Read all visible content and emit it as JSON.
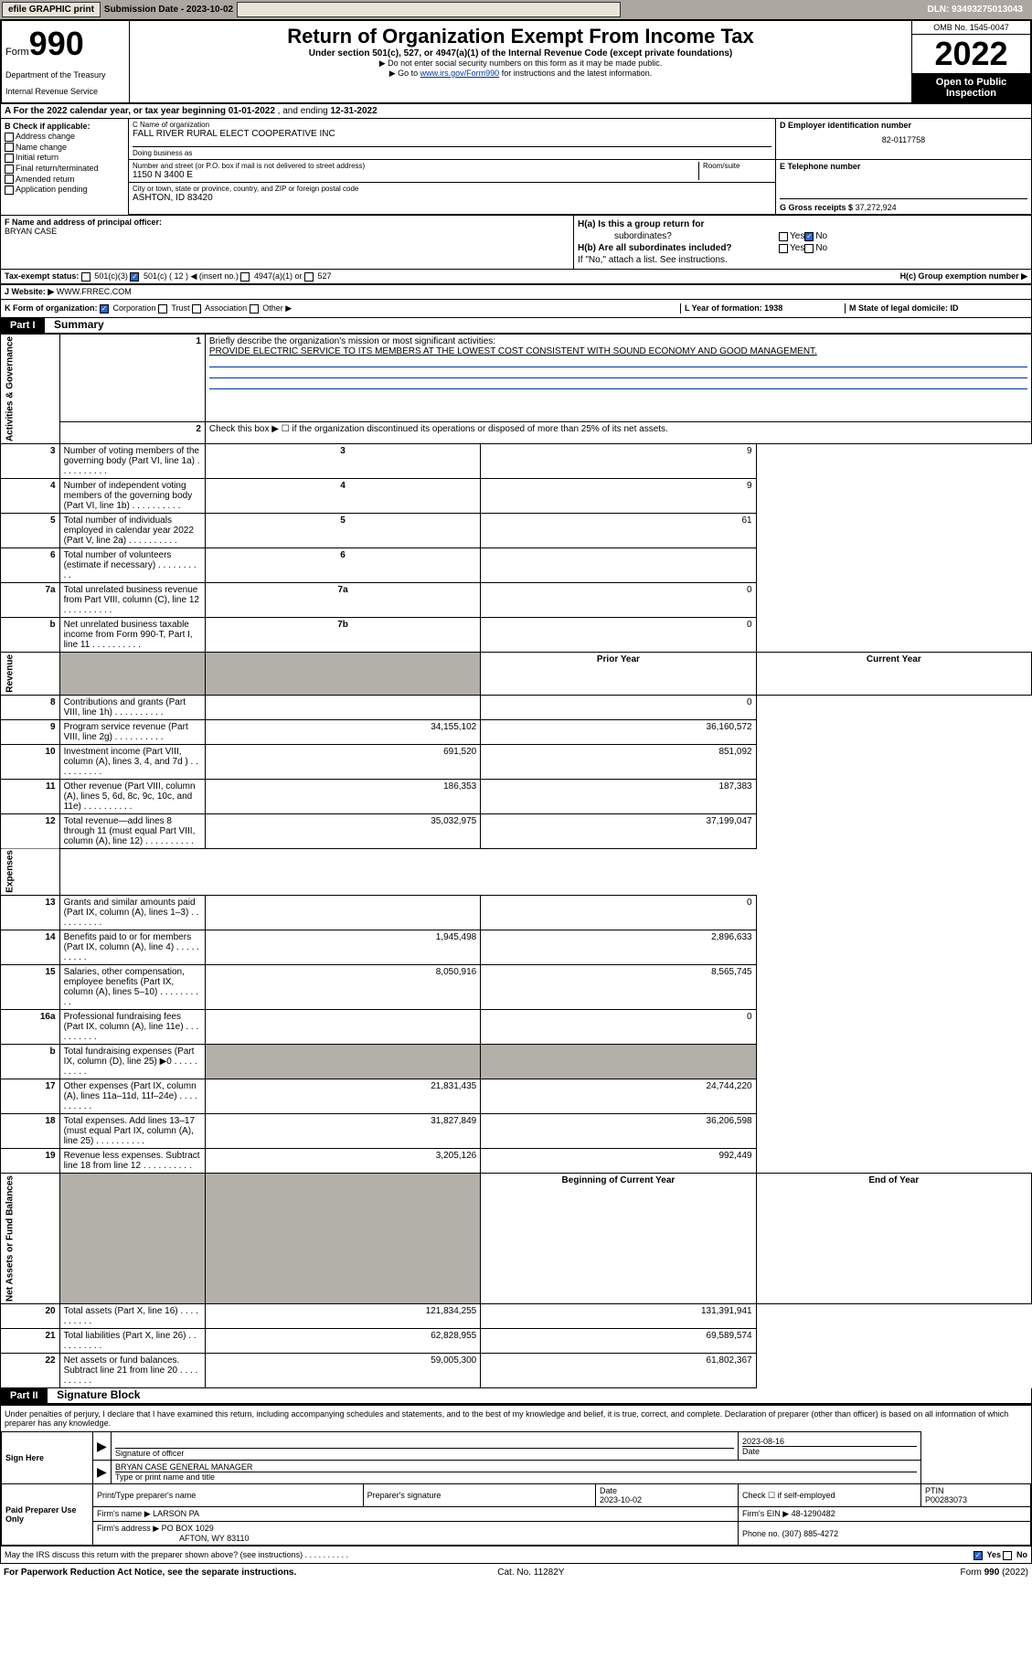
{
  "header": {
    "efile": "efile GRAPHIC print",
    "submission_label": "Submission Date - 2023-10-02",
    "dln": "DLN: 93493275013043"
  },
  "top": {
    "form_prefix": "Form",
    "form_num": "990",
    "dept": "Department of the Treasury",
    "irs": "Internal Revenue Service",
    "title": "Return of Organization Exempt From Income Tax",
    "sub": "Under section 501(c), 527, or 4947(a)(1) of the Internal Revenue Code (except private foundations)",
    "note1": "▶ Do not enter social security numbers on this form as it may be made public.",
    "note2_pre": "▶ Go to ",
    "note2_link": "www.irs.gov/Form990",
    "note2_post": " for instructions and the latest information.",
    "omb": "OMB No. 1545-0047",
    "year": "2022",
    "inspect": "Open to Public Inspection"
  },
  "a": {
    "text_pre": "A For the 2022 calendar year, or tax year beginning ",
    "begin": "01-01-2022",
    "mid": " , and ending ",
    "end": "12-31-2022"
  },
  "b": {
    "label": "B Check if applicable:",
    "opts": [
      "Address change",
      "Name change",
      "Initial return",
      "Final return/terminated",
      "Amended return",
      "Application pending"
    ]
  },
  "c": {
    "name_lbl": "C Name of organization",
    "name": "FALL RIVER RURAL ELECT COOPERATIVE INC",
    "dba_lbl": "Doing business as",
    "dba": "",
    "addr_lbl": "Number and street (or P.O. box if mail is not delivered to street address)",
    "room_lbl": "Room/suite",
    "addr": "1150 N 3400 E",
    "city_lbl": "City or town, state or province, country, and ZIP or foreign postal code",
    "city": "ASHTON, ID  83420"
  },
  "d": {
    "lbl": "D Employer identification number",
    "val": "82-0117758"
  },
  "e": {
    "lbl": "E Telephone number",
    "val": ""
  },
  "g": {
    "lbl": "G Gross receipts $",
    "val": "37,272,924"
  },
  "f": {
    "lbl": "F Name and address of principal officer:",
    "val": "BRYAN CASE"
  },
  "h": {
    "a": "H(a)  Is this a group return for",
    "a2": "subordinates?",
    "b": "H(b)  Are all subordinates included?",
    "b2": "If \"No,\" attach a list. See instructions.",
    "c": "H(c)  Group exemption number ▶",
    "yes": "Yes",
    "no": "No"
  },
  "i": {
    "lbl": "Tax-exempt status:",
    "o1": "501(c)(3)",
    "o2": "501(c) ( 12 ) ◀ (insert no.)",
    "o3": "4947(a)(1) or",
    "o4": "527"
  },
  "j": {
    "lbl": "Website: ▶",
    "val": "WWW.FRREC.COM"
  },
  "k": {
    "lbl": "K Form of organization:",
    "o1": "Corporation",
    "o2": "Trust",
    "o3": "Association",
    "o4": "Other ▶"
  },
  "l": {
    "lbl": "L Year of formation: 1938"
  },
  "m": {
    "lbl": "M State of legal domicile: ID"
  },
  "part1": {
    "hdr": "Part I",
    "title": "Summary",
    "q1": "Briefly describe the organization's mission or most significant activities:",
    "q1v": "PROVIDE ELECTRIC SERVICE TO ITS MEMBERS AT THE LOWEST COST CONSISTENT WITH SOUND ECONOMY AND GOOD MANAGEMENT.",
    "q2": "Check this box ▶ ☐ if the organization discontinued its operations or disposed of more than 25% of its net assets.",
    "side_ag": "Activities & Governance",
    "side_rev": "Revenue",
    "side_exp": "Expenses",
    "side_na": "Net Assets or Fund Balances",
    "rows_ag": [
      {
        "n": "3",
        "t": "Number of voting members of the governing body (Part VI, line 1a)",
        "box": "3",
        "v": "9"
      },
      {
        "n": "4",
        "t": "Number of independent voting members of the governing body (Part VI, line 1b)",
        "box": "4",
        "v": "9"
      },
      {
        "n": "5",
        "t": "Total number of individuals employed in calendar year 2022 (Part V, line 2a)",
        "box": "5",
        "v": "61"
      },
      {
        "n": "6",
        "t": "Total number of volunteers (estimate if necessary)",
        "box": "6",
        "v": ""
      },
      {
        "n": "7a",
        "t": "Total unrelated business revenue from Part VIII, column (C), line 12",
        "box": "7a",
        "v": "0"
      },
      {
        "n": "b",
        "t": "Net unrelated business taxable income from Form 990-T, Part I, line 11",
        "box": "7b",
        "v": "0"
      }
    ],
    "prior_hdr": "Prior Year",
    "curr_hdr": "Current Year",
    "rows_rev": [
      {
        "n": "8",
        "t": "Contributions and grants (Part VIII, line 1h)",
        "p": "",
        "c": "0"
      },
      {
        "n": "9",
        "t": "Program service revenue (Part VIII, line 2g)",
        "p": "34,155,102",
        "c": "36,160,572"
      },
      {
        "n": "10",
        "t": "Investment income (Part VIII, column (A), lines 3, 4, and 7d )",
        "p": "691,520",
        "c": "851,092"
      },
      {
        "n": "11",
        "t": "Other revenue (Part VIII, column (A), lines 5, 6d, 8c, 9c, 10c, and 11e)",
        "p": "186,353",
        "c": "187,383"
      },
      {
        "n": "12",
        "t": "Total revenue—add lines 8 through 11 (must equal Part VIII, column (A), line 12)",
        "p": "35,032,975",
        "c": "37,199,047"
      }
    ],
    "rows_exp": [
      {
        "n": "13",
        "t": "Grants and similar amounts paid (Part IX, column (A), lines 1–3)",
        "p": "",
        "c": "0"
      },
      {
        "n": "14",
        "t": "Benefits paid to or for members (Part IX, column (A), line 4)",
        "p": "1,945,498",
        "c": "2,896,633"
      },
      {
        "n": "15",
        "t": "Salaries, other compensation, employee benefits (Part IX, column (A), lines 5–10)",
        "p": "8,050,916",
        "c": "8,565,745"
      },
      {
        "n": "16a",
        "t": "Professional fundraising fees (Part IX, column (A), line 11e)",
        "p": "",
        "c": "0"
      },
      {
        "n": "b",
        "t": "Total fundraising expenses (Part IX, column (D), line 25) ▶0",
        "p": "shaded",
        "c": "shaded"
      },
      {
        "n": "17",
        "t": "Other expenses (Part IX, column (A), lines 11a–11d, 11f–24e)",
        "p": "21,831,435",
        "c": "24,744,220"
      },
      {
        "n": "18",
        "t": "Total expenses. Add lines 13–17 (must equal Part IX, column (A), line 25)",
        "p": "31,827,849",
        "c": "36,206,598"
      },
      {
        "n": "19",
        "t": "Revenue less expenses. Subtract line 18 from line 12",
        "p": "3,205,126",
        "c": "992,449"
      }
    ],
    "beg_hdr": "Beginning of Current Year",
    "end_hdr": "End of Year",
    "rows_na": [
      {
        "n": "20",
        "t": "Total assets (Part X, line 16)",
        "p": "121,834,255",
        "c": "131,391,941"
      },
      {
        "n": "21",
        "t": "Total liabilities (Part X, line 26)",
        "p": "62,828,955",
        "c": "69,589,574"
      },
      {
        "n": "22",
        "t": "Net assets or fund balances. Subtract line 21 from line 20",
        "p": "59,005,300",
        "c": "61,802,367"
      }
    ]
  },
  "part2": {
    "hdr": "Part II",
    "title": "Signature Block",
    "decl": "Under penalties of perjury, I declare that I have examined this return, including accompanying schedules and statements, and to the best of my knowledge and belief, it is true, correct, and complete. Declaration of preparer (other than officer) is based on all information of which preparer has any knowledge.",
    "sign_here": "Sign Here",
    "sig_officer": "Signature of officer",
    "date": "Date",
    "date_v": "2023-08-16",
    "name_title": "BRYAN CASE  GENERAL MANAGER",
    "name_title_lbl": "Type or print name and title",
    "paid": "Paid Preparer Use Only",
    "prep_name_lbl": "Print/Type preparer's name",
    "prep_sig_lbl": "Preparer's signature",
    "prep_date_lbl": "Date",
    "prep_date": "2023-10-02",
    "check_if": "Check ☐ if self-employed",
    "ptin_lbl": "PTIN",
    "ptin": "P00283073",
    "firm_name_lbl": "Firm's name    ▶",
    "firm_name": "LARSON PA",
    "firm_ein_lbl": "Firm's EIN ▶",
    "firm_ein": "48-1290482",
    "firm_addr_lbl": "Firm's address ▶",
    "firm_addr1": "PO BOX 1029",
    "firm_addr2": "AFTON, WY  83110",
    "phone_lbl": "Phone no.",
    "phone": "(307) 885-4272",
    "may_irs": "May the IRS discuss this return with the preparer shown above? (see instructions)"
  },
  "footer": {
    "pra": "For Paperwork Reduction Act Notice, see the separate instructions.",
    "cat": "Cat. No. 11282Y",
    "form": "Form 990 (2022)"
  }
}
